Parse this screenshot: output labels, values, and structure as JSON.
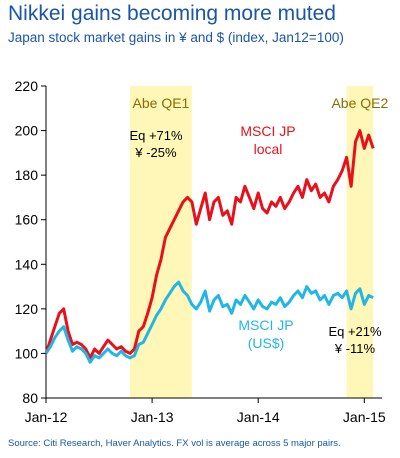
{
  "header": {
    "title": "Nikkei gains becoming more muted",
    "subtitle": "Japan stock market gains in ¥ and $ (index, Jan12=100)"
  },
  "footer": {
    "source": "Source: Citi Research, Haver Analytics. FX vol is average across 5 major pairs."
  },
  "chart_data": {
    "type": "line",
    "title": "Nikkei gains becoming more muted",
    "subtitle": "Japan stock market gains in ¥ and $ (index, Jan12=100)",
    "xlabel": "",
    "ylabel": "",
    "ylim": [
      80,
      220
    ],
    "yticks": [
      80,
      100,
      120,
      140,
      160,
      180,
      200,
      220
    ],
    "xlim": [
      0,
      38
    ],
    "xticks": [
      {
        "x": 0,
        "label": "Jan-12"
      },
      {
        "x": 12,
        "label": "Jan-13"
      },
      {
        "x": 24,
        "label": "Jan-14"
      },
      {
        "x": 36,
        "label": "Jan-15"
      }
    ],
    "grid": false,
    "colors": {
      "local": "#e8101a",
      "usd": "#22b6e8",
      "band": "#fff7b8",
      "band_label": "#f5b800"
    },
    "bands": [
      {
        "label": "Abe QE1",
        "x_start": 9.5,
        "x_end": 16.5,
        "text": [
          "Eq +71%",
          "¥ -25%"
        ]
      },
      {
        "label": "Abe QE2",
        "x_start": 34.0,
        "x_end": 37.0,
        "text": [
          "Eq +21%",
          "¥ -11%"
        ]
      }
    ],
    "series": [
      {
        "name": "MSCI JP local",
        "label_lines": [
          "MSCI JP",
          "local"
        ],
        "x": [
          0,
          0.5,
          1,
          1.5,
          2,
          2.5,
          3,
          3.5,
          4,
          4.5,
          5,
          5.5,
          6,
          6.5,
          7,
          7.5,
          8,
          8.5,
          9,
          9.5,
          10,
          10.5,
          11,
          11.5,
          12,
          12.5,
          13,
          13.5,
          14,
          14.5,
          15,
          15.5,
          16,
          16.5,
          17,
          17.5,
          18,
          18.5,
          19,
          19.5,
          20,
          20.5,
          21,
          21.5,
          22,
          22.5,
          23,
          23.5,
          24,
          24.5,
          25,
          25.5,
          26,
          26.5,
          27,
          27.5,
          28,
          28.5,
          29,
          29.5,
          30,
          30.5,
          31,
          31.5,
          32,
          32.5,
          33,
          33.5,
          34,
          34.5,
          35,
          35.5,
          36,
          36.5,
          37
        ],
        "values": [
          100,
          106,
          112,
          118,
          120,
          110,
          104,
          105,
          104,
          102,
          98,
          102,
          100,
          103,
          106,
          104,
          102,
          103,
          101,
          100,
          102,
          110,
          112,
          118,
          125,
          135,
          142,
          152,
          156,
          160,
          164,
          168,
          170,
          168,
          158,
          165,
          172,
          160,
          168,
          170,
          162,
          164,
          158,
          170,
          168,
          175,
          170,
          165,
          172,
          165,
          163,
          168,
          166,
          170,
          165,
          168,
          172,
          175,
          170,
          178,
          173,
          176,
          170,
          172,
          168,
          175,
          178,
          182,
          188,
          175,
          195,
          200,
          192,
          198,
          192
        ]
      },
      {
        "name": "MSCI JP (US$)",
        "label_lines": [
          "MSCI JP",
          "(US$)"
        ],
        "x": [
          0,
          0.5,
          1,
          1.5,
          2,
          2.5,
          3,
          3.5,
          4,
          4.5,
          5,
          5.5,
          6,
          6.5,
          7,
          7.5,
          8,
          8.5,
          9,
          9.5,
          10,
          10.5,
          11,
          11.5,
          12,
          12.5,
          13,
          13.5,
          14,
          14.5,
          15,
          15.5,
          16,
          16.5,
          17,
          17.5,
          18,
          18.5,
          19,
          19.5,
          20,
          20.5,
          21,
          21.5,
          22,
          22.5,
          23,
          23.5,
          24,
          24.5,
          25,
          25.5,
          26,
          26.5,
          27,
          27.5,
          28,
          28.5,
          29,
          29.5,
          30,
          30.5,
          31,
          31.5,
          32,
          32.5,
          33,
          33.5,
          34,
          34.5,
          35,
          35.5,
          36,
          36.5,
          37
        ],
        "values": [
          100,
          103,
          107,
          110,
          112,
          106,
          101,
          103,
          102,
          100,
          96,
          99,
          98,
          100,
          102,
          100,
          99,
          101,
          99,
          98,
          99,
          104,
          105,
          109,
          113,
          117,
          120,
          124,
          127,
          130,
          132,
          128,
          126,
          122,
          120,
          123,
          128,
          119,
          124,
          126,
          121,
          122,
          118,
          124,
          122,
          126,
          123,
          120,
          124,
          121,
          120,
          123,
          122,
          125,
          121,
          123,
          126,
          128,
          125,
          130,
          127,
          128,
          124,
          126,
          122,
          126,
          127,
          125,
          128,
          120,
          127,
          129,
          122,
          126,
          125
        ]
      }
    ]
  }
}
